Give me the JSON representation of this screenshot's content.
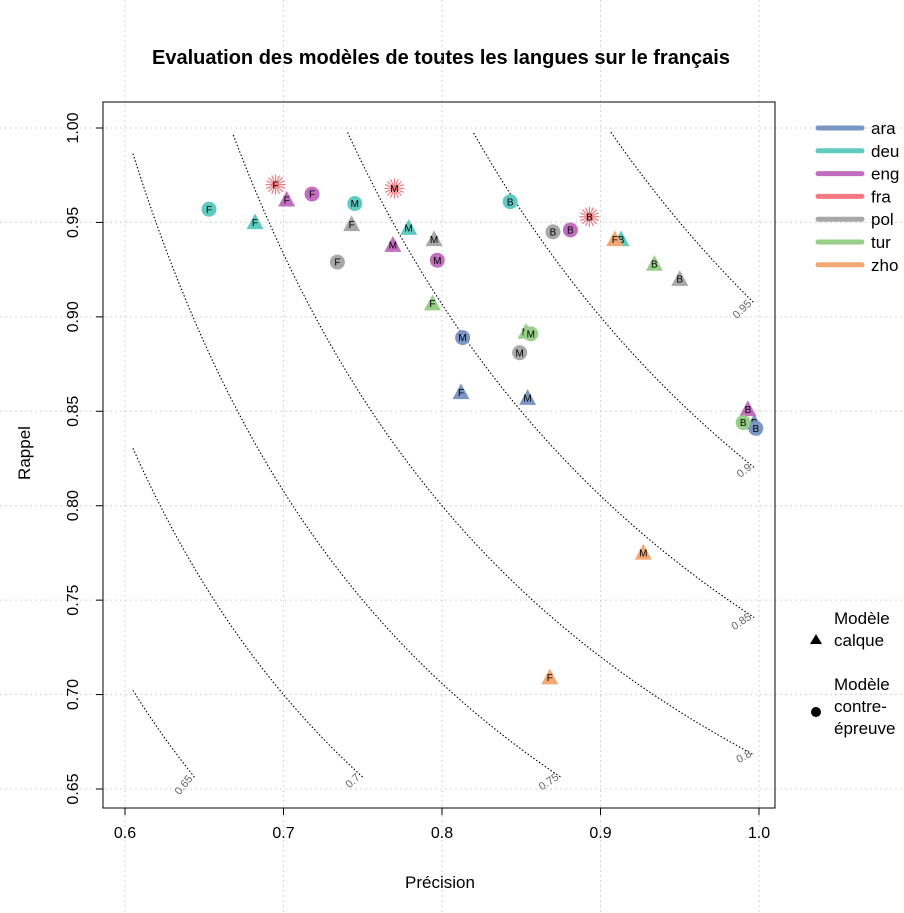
{
  "chart_data": {
    "type": "scatter",
    "title": "Evaluation des modèles de toutes les langues sur le français",
    "xlabel": "Précision",
    "ylabel": "Rappel",
    "xlim": [
      0.6,
      1.0
    ],
    "ylim": [
      0.65,
      1.0
    ],
    "x_ticks": [
      "0.6",
      "0.7",
      "0.8",
      "0.9",
      "1.0"
    ],
    "y_ticks": [
      "0.65",
      "0.70",
      "0.75",
      "0.80",
      "0.85",
      "0.90",
      "0.95",
      "1.00"
    ],
    "grid": true,
    "contours": [
      {
        "label": "0.65",
        "value": 0.65
      },
      {
        "label": "0.7",
        "value": 0.7
      },
      {
        "label": "0.75",
        "value": 0.75
      },
      {
        "label": "0.8",
        "value": 0.8
      },
      {
        "label": "0.85",
        "value": 0.85
      },
      {
        "label": "0.9",
        "value": 0.9
      },
      {
        "label": "0.95",
        "value": 0.95
      }
    ],
    "legend_position": "right",
    "languages": [
      {
        "name": "ara",
        "color": "#7b96c4"
      },
      {
        "name": "deu",
        "color": "#5fcbc0"
      },
      {
        "name": "eng",
        "color": "#c06ebd"
      },
      {
        "name": "fra",
        "color": "#f07a80"
      },
      {
        "name": "pol",
        "color": "#a8a8a8"
      },
      {
        "name": "tur",
        "color": "#98cf88"
      },
      {
        "name": "zho",
        "color": "#f4a871"
      }
    ],
    "shape_legend": [
      {
        "shape": "triangle",
        "label": [
          "Modèle",
          "calque"
        ]
      },
      {
        "shape": "circle",
        "label": [
          "Modèle",
          "contre-",
          "épreuve"
        ]
      }
    ],
    "series": [
      {
        "name": "ara",
        "points": [
          {
            "x": 0.813,
            "y": 0.889,
            "shape": "circle",
            "label": "M"
          },
          {
            "x": 0.812,
            "y": 0.86,
            "shape": "triangle",
            "label": "F"
          },
          {
            "x": 0.854,
            "y": 0.857,
            "shape": "triangle",
            "label": "M"
          },
          {
            "x": 0.997,
            "y": 0.844,
            "shape": "triangle",
            "label": "B"
          },
          {
            "x": 0.998,
            "y": 0.841,
            "shape": "circle",
            "label": "B"
          }
        ]
      },
      {
        "name": "deu",
        "points": [
          {
            "x": 0.653,
            "y": 0.957,
            "shape": "circle",
            "label": "F"
          },
          {
            "x": 0.682,
            "y": 0.95,
            "shape": "triangle",
            "label": "F"
          },
          {
            "x": 0.745,
            "y": 0.96,
            "shape": "circle",
            "label": "M"
          },
          {
            "x": 0.779,
            "y": 0.947,
            "shape": "triangle",
            "label": "M"
          },
          {
            "x": 0.843,
            "y": 0.961,
            "shape": "circle",
            "label": "B"
          },
          {
            "x": 0.913,
            "y": 0.941,
            "shape": "triangle",
            "label": "B"
          }
        ]
      },
      {
        "name": "eng",
        "points": [
          {
            "x": 0.702,
            "y": 0.962,
            "shape": "triangle",
            "label": "F"
          },
          {
            "x": 0.718,
            "y": 0.965,
            "shape": "circle",
            "label": "F"
          },
          {
            "x": 0.769,
            "y": 0.938,
            "shape": "triangle",
            "label": "M"
          },
          {
            "x": 0.797,
            "y": 0.93,
            "shape": "circle",
            "label": "M"
          },
          {
            "x": 0.881,
            "y": 0.946,
            "shape": "circle",
            "label": "B"
          },
          {
            "x": 0.993,
            "y": 0.851,
            "shape": "triangle",
            "label": "B"
          }
        ]
      },
      {
        "name": "fra",
        "points": [
          {
            "x": 0.695,
            "y": 0.97,
            "shape": "star",
            "label": "F"
          },
          {
            "x": 0.77,
            "y": 0.968,
            "shape": "star",
            "label": "M"
          },
          {
            "x": 0.893,
            "y": 0.953,
            "shape": "star",
            "label": "B"
          }
        ]
      },
      {
        "name": "pol",
        "points": [
          {
            "x": 0.734,
            "y": 0.929,
            "shape": "circle",
            "label": "F"
          },
          {
            "x": 0.743,
            "y": 0.949,
            "shape": "triangle",
            "label": "F"
          },
          {
            "x": 0.795,
            "y": 0.941,
            "shape": "triangle",
            "label": "M"
          },
          {
            "x": 0.849,
            "y": 0.881,
            "shape": "circle",
            "label": "M"
          },
          {
            "x": 0.87,
            "y": 0.945,
            "shape": "circle",
            "label": "B"
          },
          {
            "x": 0.95,
            "y": 0.92,
            "shape": "triangle",
            "label": "B"
          }
        ]
      },
      {
        "name": "tur",
        "points": [
          {
            "x": 0.794,
            "y": 0.907,
            "shape": "triangle",
            "label": "F"
          },
          {
            "x": 0.853,
            "y": 0.892,
            "shape": "triangle",
            "label": "M"
          },
          {
            "x": 0.856,
            "y": 0.891,
            "shape": "circle",
            "label": "M"
          },
          {
            "x": 0.934,
            "y": 0.928,
            "shape": "triangle",
            "label": "B"
          },
          {
            "x": 0.99,
            "y": 0.844,
            "shape": "circle",
            "label": "B"
          }
        ]
      },
      {
        "name": "zho",
        "points": [
          {
            "x": 0.909,
            "y": 0.941,
            "shape": "triangle",
            "label": "F"
          },
          {
            "x": 0.868,
            "y": 0.709,
            "shape": "triangle",
            "label": "F"
          },
          {
            "x": 0.927,
            "y": 0.775,
            "shape": "triangle",
            "label": "M"
          }
        ]
      }
    ]
  }
}
